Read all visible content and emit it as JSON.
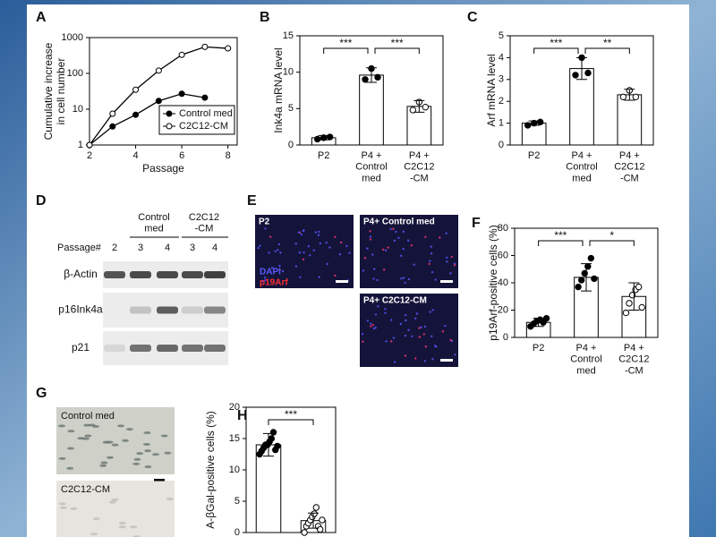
{
  "chart_data": [
    {
      "type": "line",
      "panel": "A",
      "ylabel": "Cumulative increase\nin cell number",
      "xlabel": "Passage",
      "x": [
        2,
        3,
        4,
        5,
        6,
        7,
        8
      ],
      "xlim": [
        2,
        8.4
      ],
      "xticks": [
        2,
        4,
        6,
        8
      ],
      "ylog": true,
      "ylim": [
        1,
        1000
      ],
      "yticks": [
        1,
        10,
        100,
        1000
      ],
      "legend": "lower right",
      "series": [
        {
          "name": "Control med",
          "color": "#000000",
          "marker": "filled",
          "values": [
            1,
            3.3,
            7,
            17,
            27,
            21,
            null
          ]
        },
        {
          "name": "C2C12-CM",
          "color": "#000000",
          "marker": "open",
          "values": [
            1,
            7.5,
            35,
            120,
            330,
            550,
            500
          ]
        }
      ]
    },
    {
      "type": "bar",
      "panel": "B",
      "ylabel": "Ink4a mRNA level",
      "categories": [
        "P2",
        "P4 +\nControl\nmed",
        "P4 +\nC2C12\n-CM"
      ],
      "values": [
        1.0,
        9.6,
        5.3
      ],
      "errors": [
        0.3,
        1.0,
        0.8
      ],
      "points": [
        [
          0.8,
          1.0,
          1.1
        ],
        [
          9.0,
          10.5,
          9.3
        ],
        [
          4.8,
          5.9,
          5.2
        ]
      ],
      "point_fill": [
        "#000000",
        "#000000",
        "#ffffff"
      ],
      "color": "#ffffff",
      "ylim": [
        0,
        15
      ],
      "yticks": [
        0,
        5,
        10,
        15
      ],
      "significance": [
        {
          "between": [
            0,
            1
          ],
          "label": "***"
        },
        {
          "between": [
            1,
            2
          ],
          "label": "***"
        }
      ]
    },
    {
      "type": "bar",
      "panel": "C",
      "ylabel": "Arf mRNA level",
      "categories": [
        "P2",
        "P4 +\nControl\nmed",
        "P4 +\nC2C12\n-CM"
      ],
      "values": [
        1.0,
        3.5,
        2.3
      ],
      "errors": [
        0.1,
        0.5,
        0.25
      ],
      "points": [
        [
          0.9,
          1.0,
          1.05
        ],
        [
          3.2,
          4.0,
          3.3
        ],
        [
          2.2,
          2.5,
          2.2
        ]
      ],
      "point_fill": [
        "#000000",
        "#000000",
        "#ffffff"
      ],
      "color": "#ffffff",
      "ylim": [
        0,
        5
      ],
      "yticks": [
        0,
        1,
        2,
        3,
        4,
        5
      ],
      "significance": [
        {
          "between": [
            0,
            1
          ],
          "label": "***"
        },
        {
          "between": [
            1,
            2
          ],
          "label": "**"
        }
      ]
    },
    {
      "type": "bar",
      "panel": "F",
      "ylabel": "p19Arf-positive cells (%)",
      "categories": [
        "P2",
        "P4 +\nControl\nmed",
        "P4 +\nC2C12\n-CM"
      ],
      "values": [
        11,
        44,
        30
      ],
      "errors": [
        3,
        10,
        10
      ],
      "points": [
        [
          8,
          10,
          12,
          13,
          11,
          14
        ],
        [
          37,
          42,
          47,
          52,
          58,
          43
        ],
        [
          18,
          25,
          31,
          35,
          37,
          22
        ]
      ],
      "point_fill": [
        "#000000",
        "#000000",
        "#ffffff"
      ],
      "color": "#ffffff",
      "ylim": [
        0,
        80
      ],
      "yticks": [
        0,
        20,
        40,
        60,
        80
      ],
      "significance": [
        {
          "between": [
            0,
            1
          ],
          "label": "***"
        },
        {
          "between": [
            1,
            2
          ],
          "label": "*"
        }
      ]
    },
    {
      "type": "bar",
      "panel": "H",
      "ylabel": "A-βGal-positive cells (%)",
      "categories": [
        null,
        null
      ],
      "values": [
        14,
        1.9
      ],
      "errors": [
        1.8,
        1.2
      ],
      "points": [
        [
          12.5,
          13,
          13.5,
          14,
          14,
          14.5,
          15,
          16,
          13.2,
          13.8
        ],
        [
          0,
          1,
          1.5,
          2,
          2.5,
          3,
          4,
          1,
          0.5,
          2
        ]
      ],
      "point_fill": [
        "#000000",
        "#ffffff"
      ],
      "color": "#ffffff",
      "ylim": [
        0,
        20
      ],
      "yticks": [
        0,
        5,
        10,
        15,
        20
      ],
      "significance": [
        {
          "between": [
            0,
            1
          ],
          "label": "***"
        }
      ]
    }
  ],
  "blot": {
    "panel": "D",
    "groups": [
      "Control\nmed",
      "C2C12\n-CM"
    ],
    "row_label": "Passage#",
    "lanes": [
      "2",
      "3",
      "4",
      "3",
      "4"
    ],
    "bands": [
      "β-Actin",
      "p16Ink4a",
      "p21"
    ]
  },
  "micrographs": {
    "panel": "E",
    "images": [
      "P2",
      "P4+ Control med",
      "P4+ C2C12-CM"
    ],
    "stains": [
      "DAPI",
      "p19Arf"
    ]
  },
  "staining": {
    "panel": "G",
    "images": [
      "Control med",
      "C2C12-CM"
    ]
  }
}
